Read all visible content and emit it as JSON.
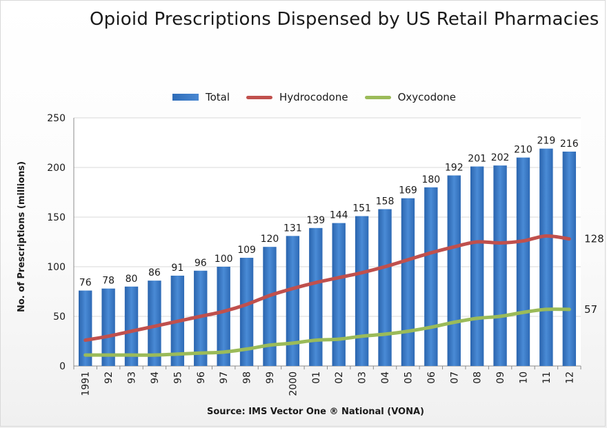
{
  "title": "Opioid Prescriptions Dispensed by US Retail Pharmacies",
  "source": "Source: IMS Vector One ® National (VONA)",
  "colors": {
    "total": "#3a7bc8",
    "hydrocodone": "#c0504d",
    "oxycodone": "#9bbb59"
  },
  "chart_data": {
    "type": "bar",
    "title": "Opioid Prescriptions Dispensed by US Retail Pharmacies",
    "xlabel": "",
    "ylabel": "No. of Prescriptions (millions)",
    "ylim": [
      0,
      250
    ],
    "yticks": [
      0,
      50,
      100,
      150,
      200,
      250
    ],
    "grid": true,
    "legend_position": "top",
    "categories": [
      "1991",
      "92",
      "93",
      "94",
      "95",
      "96",
      "97",
      "98",
      "99",
      "2000",
      "01",
      "02",
      "03",
      "04",
      "05",
      "06",
      "07",
      "08",
      "09",
      "10",
      "11",
      "12"
    ],
    "series": [
      {
        "name": "Total",
        "type": "bar",
        "values": [
          76,
          78,
          80,
          86,
          91,
          96,
          100,
          109,
          120,
          131,
          139,
          144,
          151,
          158,
          169,
          180,
          192,
          201,
          202,
          210,
          219,
          216
        ],
        "labels": [
          "76",
          "78",
          "80",
          "86",
          "91",
          "96",
          "100",
          "109",
          "120",
          "131",
          "139",
          "144",
          "151",
          "158",
          "169",
          "180",
          "192",
          "201",
          "202",
          "210",
          "219",
          "216"
        ]
      },
      {
        "name": "Hydrocodone",
        "type": "line",
        "values": [
          26,
          30,
          35,
          40,
          45,
          50,
          55,
          62,
          71,
          78,
          84,
          89,
          94,
          100,
          107,
          114,
          120,
          125,
          124,
          126,
          131,
          128
        ],
        "end_label": "128"
      },
      {
        "name": "Oxycodone",
        "type": "line",
        "values": [
          11,
          11,
          11,
          11,
          12,
          13,
          14,
          17,
          21,
          23,
          26,
          27,
          30,
          32,
          35,
          39,
          44,
          48,
          50,
          54,
          57,
          57
        ],
        "end_label": "57"
      }
    ]
  }
}
